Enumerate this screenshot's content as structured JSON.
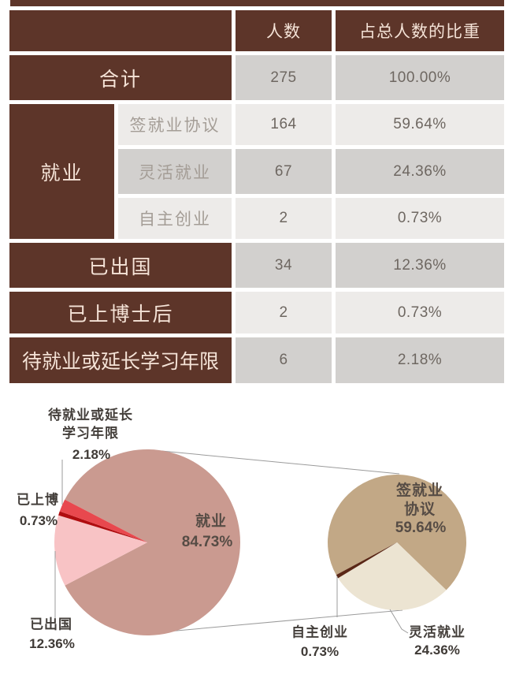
{
  "table": {
    "header": {
      "col_label": "",
      "col_people": "人数",
      "col_share": "占总人数的比重"
    },
    "total_row": {
      "label": "合计",
      "people": "275",
      "share": "100.00%"
    },
    "employment_group": {
      "label": "就业",
      "rows": [
        {
          "label": "签就业协议",
          "people": "164",
          "share": "59.64%"
        },
        {
          "label": "灵活就业",
          "people": "67",
          "share": "24.36%"
        },
        {
          "label": "自主创业",
          "people": "2",
          "share": "0.73%"
        }
      ]
    },
    "other_rows": [
      {
        "label": "已出国",
        "people": "34",
        "share": "12.36%"
      },
      {
        "label": "已上博士后",
        "people": "2",
        "share": "0.73%"
      },
      {
        "label": "待就业或延长学习年限",
        "people": "6",
        "share": "2.18%"
      }
    ]
  },
  "theme": {
    "header_brown": "#5d3529",
    "header_text": "#f5e3d7",
    "band_dark": "#d2d0ce",
    "band_light": "#edebe9",
    "number_text": "#6e6761",
    "sublabel_text": "#a49d96",
    "leader_line": "#9b9b9b"
  },
  "chart_data": {
    "type": "pie",
    "subtype": "pie-of-pie",
    "legend_position": "none",
    "main_pie": {
      "start_angle": 297.4,
      "slices": [
        {
          "label": "就业",
          "value": 84.73,
          "pct_label": "84.73%",
          "color": "#ca9a90"
        },
        {
          "label": "已出国",
          "value": 12.36,
          "pct_label": "12.36%",
          "color": "#f8c3c5"
        },
        {
          "label": "已上博",
          "value": 0.73,
          "pct_label": "0.73%",
          "color": "#b00d10"
        },
        {
          "label": "待就业或延长\n学习年限",
          "value": 2.18,
          "pct_label": "2.18%",
          "color": "#e8484e"
        }
      ]
    },
    "secondary_pie": {
      "start_angle": 241.3,
      "slices": [
        {
          "label": "签就业\n协议",
          "value": 59.64,
          "pct_label": "59.64%",
          "color": "#c2a886"
        },
        {
          "label": "灵活就业",
          "value": 24.36,
          "pct_label": "24.36%",
          "color": "#ece4d2"
        },
        {
          "label": "自主创业",
          "value": 0.73,
          "pct_label": "0.73%",
          "color": "#5a2716"
        }
      ]
    }
  }
}
